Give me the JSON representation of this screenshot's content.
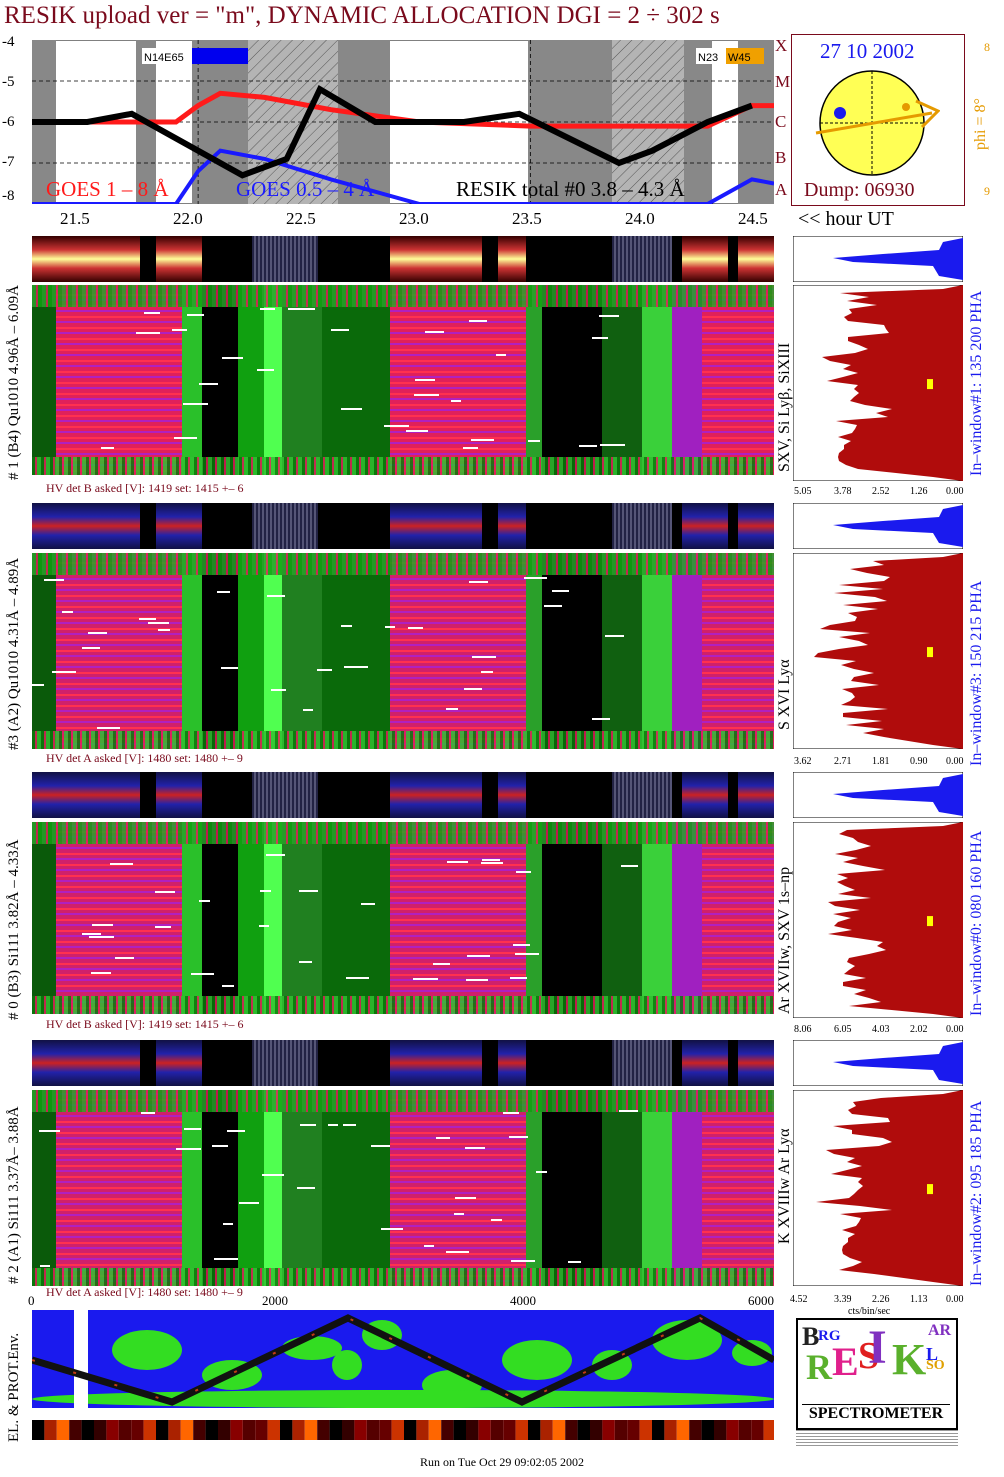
{
  "title": "RESIK upload ver = \"m\", DYNAMIC ALLOCATION  DGI =   2 ÷ 302 s",
  "colors": {
    "goes_long": "#ff1a1a",
    "goes_short": "#1a1aff",
    "resik_total": "#000000",
    "maroon": "#7a0a1c",
    "sun": "#ffff55",
    "orange": "#e59a00"
  },
  "top_chart": {
    "y_ticks": [
      "-4",
      "-5",
      "-6",
      "-7",
      "-8"
    ],
    "flare_classes": [
      "X",
      "M",
      "C",
      "B",
      "A"
    ],
    "legend": {
      "goes_long": "GOES 1 – 8 Å",
      "goes_short": "GOES 0.5 – 4 Å",
      "resik_total": "RESIK total #0 3.8 – 4.3 Å"
    },
    "ar_left": "N14E65",
    "ar_right_n": "N23",
    "ar_right_w": "W45"
  },
  "sun_panel": {
    "date": "27 10 2002",
    "dump": "Dump: 06930",
    "phi_label": "phi =  8°",
    "phi_top": "8",
    "phi_bottom": "9"
  },
  "time_axis": {
    "ticks": [
      "21.5",
      "22.0",
      "22.5",
      "23.0",
      "23.5",
      "24.0",
      "24.5"
    ],
    "unit_label": "<< hour UT"
  },
  "channels": [
    {
      "side_label": "# 1 (B4) Qu1010 4.96Å – 6.09Å",
      "line_label": "SXV, Si Lyβ, SiXIII",
      "hv": "HV det B asked [V]:  1419 set:  1415 +–   6",
      "pha_label": "In–window#1:  135 200 PHA",
      "pha_ticks": [
        "5.05",
        "3.78",
        "2.52",
        "1.26",
        "0.00"
      ]
    },
    {
      "side_label": "#3 (A2) Qu1010  4.31Å – 4.89Å",
      "line_label": "S XVI Lyα",
      "hv": "HV det A asked [V]:  1480 set:  1480 +–   9",
      "pha_label": "In–window#3:  150 215 PHA",
      "pha_ticks": [
        "3.62",
        "2.71",
        "1.81",
        "0.90",
        "0.00"
      ]
    },
    {
      "side_label": "# 0 (B3) Si111  3.82Å – 4.33Å",
      "line_label": "Ar XVIIw,  SXV 1s–np",
      "hv": "HV det B asked [V]:  1419 set:  1415 +–   6",
      "pha_label": "In–window#0:  080 160 PHA",
      "pha_ticks": [
        "8.06",
        "6.05",
        "4.03",
        "2.02",
        "0.00"
      ]
    },
    {
      "side_label": "# 2 (A1) Si111  3.37Å– 3.88Å",
      "line_label": "K XVIIIw  Ar Lyα",
      "hv": "HV det A asked [V]:  1480 set:  1480 +–   9",
      "pha_label": "In–window#2:  095 185 PHA",
      "pha_ticks": [
        "4.52",
        "3.39",
        "2.26",
        "1.13",
        "0.00"
      ],
      "pha_unit": "cts/bin/sec"
    }
  ],
  "bottom_axis": {
    "ticks": [
      "0",
      "2000",
      "4000",
      "6000"
    ]
  },
  "env_label": "EL. & PROT.Env.",
  "logo": {
    "text": "SPECTROMETER",
    "letters": [
      "B",
      "RG",
      "R",
      "E",
      "S",
      "I",
      "K",
      "SO",
      "L",
      "AR"
    ]
  },
  "footer": "Run on Tue Oct 29 09:02:05 2002",
  "chart_data": {
    "type": "line",
    "x_label": "hour UT",
    "x_range": [
      21.25,
      24.6
    ],
    "y_range": [
      -8,
      -4
    ],
    "series": [
      {
        "name": "GOES 1 – 8 Å",
        "x": [
          21.25,
          21.6,
          21.9,
          22.0,
          22.1,
          22.3,
          22.6,
          23.0,
          23.5,
          24.0,
          24.3,
          24.5,
          24.6
        ],
        "values": [
          -6.0,
          -6.0,
          -6.0,
          -5.6,
          -5.3,
          -5.4,
          -5.7,
          -6.0,
          -6.1,
          -6.1,
          -6.1,
          -5.6,
          -5.6
        ]
      },
      {
        "name": "GOES 0.5 – 4 Å",
        "x": [
          21.25,
          21.6,
          21.9,
          22.0,
          22.1,
          22.3,
          22.6,
          23.0,
          23.5,
          24.0,
          24.3,
          24.5,
          24.6
        ],
        "values": [
          -8.0,
          -8.0,
          -8.0,
          -7.2,
          -6.7,
          -6.9,
          -7.4,
          -8.0,
          -8.0,
          -8.0,
          -8.0,
          -7.4,
          -7.5
        ]
      },
      {
        "name": "RESIK total #0 3.8 – 4.3 Å",
        "x": [
          21.25,
          21.5,
          21.7,
          22.2,
          22.4,
          22.55,
          22.8,
          23.2,
          23.45,
          23.9,
          24.05,
          24.3,
          24.5
        ],
        "values": [
          -6.0,
          -6.0,
          -5.8,
          -7.3,
          -6.9,
          -5.2,
          -6.0,
          -6.0,
          -5.8,
          -7.0,
          -6.7,
          -6.0,
          -5.6
        ]
      }
    ]
  }
}
